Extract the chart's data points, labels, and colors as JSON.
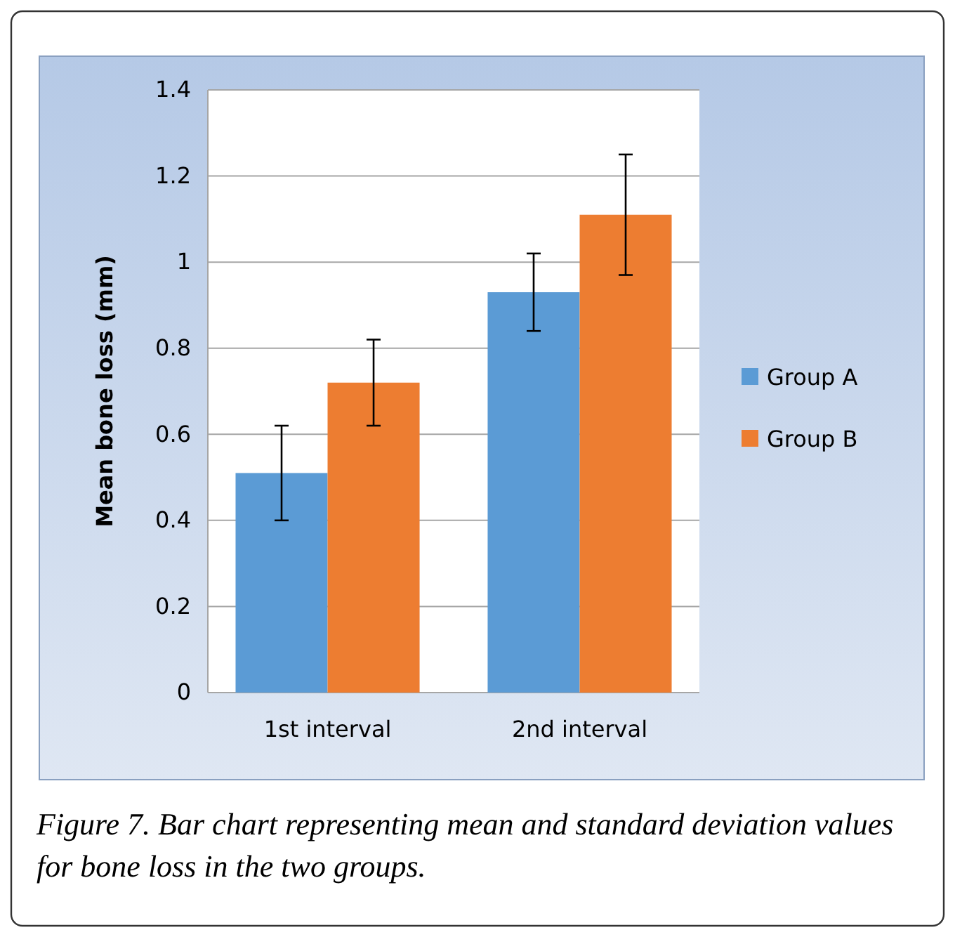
{
  "chart_data": {
    "type": "bar",
    "ylabel": "Mean bone loss (mm)",
    "categories": [
      "1st interval",
      "2nd interval"
    ],
    "series": [
      {
        "name": "Group A",
        "color": "#5b9bd5",
        "values": [
          0.51,
          0.93
        ],
        "errors": [
          0.11,
          0.09
        ]
      },
      {
        "name": "Group B",
        "color": "#ed7d31",
        "values": [
          0.72,
          1.11
        ],
        "errors": [
          0.1,
          0.14
        ]
      }
    ],
    "ylim": [
      0,
      1.4
    ],
    "yticks": [
      0,
      0.2,
      0.4,
      0.6,
      0.8,
      1,
      1.2,
      1.4
    ],
    "grid": "y",
    "legend": "right",
    "annotations": [
      "Figure 7. Bar chart representing mean and standard deviation values for bone loss in the two groups."
    ]
  }
}
